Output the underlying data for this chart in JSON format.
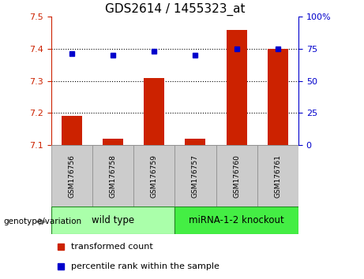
{
  "title": "GDS2614 / 1455323_at",
  "samples": [
    "GSM176756",
    "GSM176758",
    "GSM176759",
    "GSM176757",
    "GSM176760",
    "GSM176761"
  ],
  "red_values": [
    7.19,
    7.12,
    7.31,
    7.12,
    7.46,
    7.4
  ],
  "blue_values": [
    71,
    70,
    73,
    70,
    75,
    75
  ],
  "ylim_left": [
    7.1,
    7.5
  ],
  "ylim_right": [
    0,
    100
  ],
  "yticks_left": [
    7.1,
    7.2,
    7.3,
    7.4,
    7.5
  ],
  "yticks_right": [
    0,
    25,
    50,
    75,
    100
  ],
  "ytick_right_labels": [
    "0",
    "25",
    "50",
    "75",
    "100%"
  ],
  "red_color": "#cc2200",
  "blue_color": "#0000cc",
  "groups": [
    {
      "label": "wild type",
      "span": [
        0,
        3
      ],
      "color": "#aaffaa"
    },
    {
      "label": "miRNA-1-2 knockout",
      "span": [
        3,
        6
      ],
      "color": "#44ee44"
    }
  ],
  "genotype_label": "genotype/variation",
  "legend_red": "transformed count",
  "legend_blue": "percentile rank within the sample",
  "bar_width": 0.5,
  "baseline": 7.1,
  "grid_lines": [
    7.2,
    7.3,
    7.4
  ],
  "label_strip_color": "#cccccc",
  "label_strip_edge": "#888888",
  "geno_edge_color": "#228822",
  "title_fontsize": 11,
  "tick_fontsize": 8,
  "sample_fontsize": 6.5,
  "geno_fontsize": 8.5,
  "legend_fontsize": 8
}
